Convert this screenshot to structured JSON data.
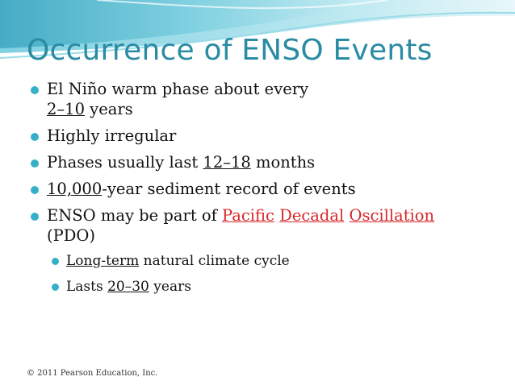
{
  "slide": {
    "title": "Occurrence of ENSO Events",
    "bullets": [
      {
        "line1": "El Niño warm phase about every",
        "range": "2–10",
        "after": " years"
      },
      {
        "text": "Highly irregular"
      },
      {
        "before": "Phases usually last ",
        "range": "12–18",
        "after": " months"
      },
      {
        "link": "10,000",
        "after": "-year sediment record of events"
      },
      {
        "before": "ENSO may be part of ",
        "w1": "Pacific",
        "w2": "Decadal",
        "w3": "Oscillation",
        "line2": "(PDO)"
      }
    ],
    "sub_bullets": [
      {
        "link": "Long-term",
        "after": " natural climate cycle"
      },
      {
        "before": "Lasts ",
        "range": "20–30",
        "after": " years"
      }
    ],
    "footer": "© 2011 Pearson Education, Inc."
  },
  "colors": {
    "title": "#2a8ba4",
    "bullet": "#35b0c9",
    "link_red": "#d8262a"
  }
}
